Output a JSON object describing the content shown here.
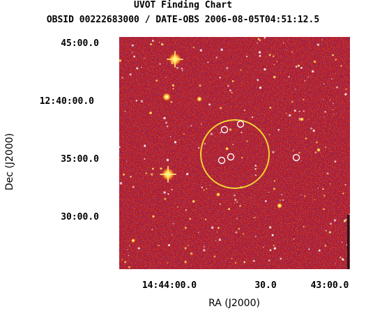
{
  "chart": {
    "title": "UVOT Finding Chart",
    "subtitle": "OBSID 00222683000 / DATE-OBS 2006-08-05T04:51:12.5",
    "xlabel": "RA (J2000)",
    "ylabel": "Dec (J2000)",
    "dec_ticks": [
      "45:00.0",
      "12:40:00.0",
      "35:00.0",
      "30:00.0"
    ],
    "ra_ticks": [
      "14:44:00.0",
      "30.0",
      "43:00.0"
    ]
  },
  "colors": {
    "background_dark": "#c41a1a",
    "noise_blue": "#5a2a9a",
    "noise_orange": "#ff8a1a",
    "star_core": "#ffffe0",
    "error_circle": "#f2d234",
    "source_marker": "#ffffff"
  },
  "chart_data": {
    "type": "image",
    "ra_axis_ticks": [
      "14:44:00.0",
      "30.0",
      "43:00.0"
    ],
    "dec_axis_ticks": [
      "45:00.0",
      "12:40:00.0",
      "35:00.0",
      "30:00.0"
    ],
    "error_circle": "yellow",
    "marked_sources": 5,
    "colormap": "heat"
  }
}
